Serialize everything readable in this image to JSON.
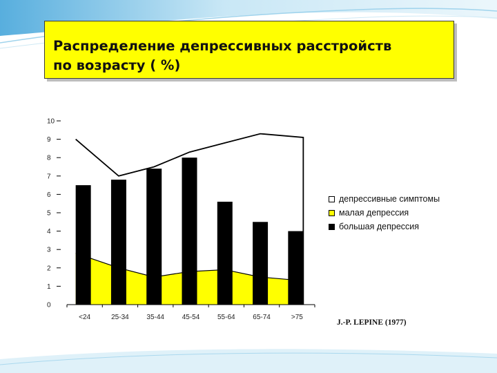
{
  "title": {
    "line1": "Распределение депрессивных расстройств",
    "line2": "по возрасту ( %)"
  },
  "source": "J.-P. LEPINE (1977)",
  "colors": {
    "symptoms_fill": "#ffffff",
    "minor_fill": "#ffff00",
    "major_fill": "#000000",
    "title_bg": "#ffff00",
    "accent": "#3aa0d8"
  },
  "chart_data": {
    "type": "bar",
    "categories": [
      "<24",
      "25-34",
      "35-44",
      "45-54",
      "55-64",
      "65-74",
      ">75"
    ],
    "y_ticks": [
      "0",
      "1",
      "2",
      "3",
      "4",
      "5",
      "6",
      "7",
      "8",
      "9",
      "10"
    ],
    "ylim": [
      0,
      10
    ],
    "grid": false,
    "legend_position": "right",
    "series": [
      {
        "name": "депрессивные симптомы",
        "kind": "area",
        "values": [
          9.0,
          7.0,
          7.5,
          8.3,
          8.8,
          9.3,
          9.1
        ]
      },
      {
        "name": "малая депрессия",
        "kind": "area",
        "values": [
          2.8,
          2.0,
          1.5,
          1.8,
          1.9,
          1.5,
          1.3
        ]
      },
      {
        "name": "большая депрессия",
        "kind": "bar",
        "values": [
          6.5,
          6.8,
          7.4,
          8.0,
          5.6,
          4.5,
          4.0
        ]
      }
    ],
    "legend": [
      "депрессивные симптомы",
      "малая депрессия",
      "большая депрессия"
    ]
  }
}
